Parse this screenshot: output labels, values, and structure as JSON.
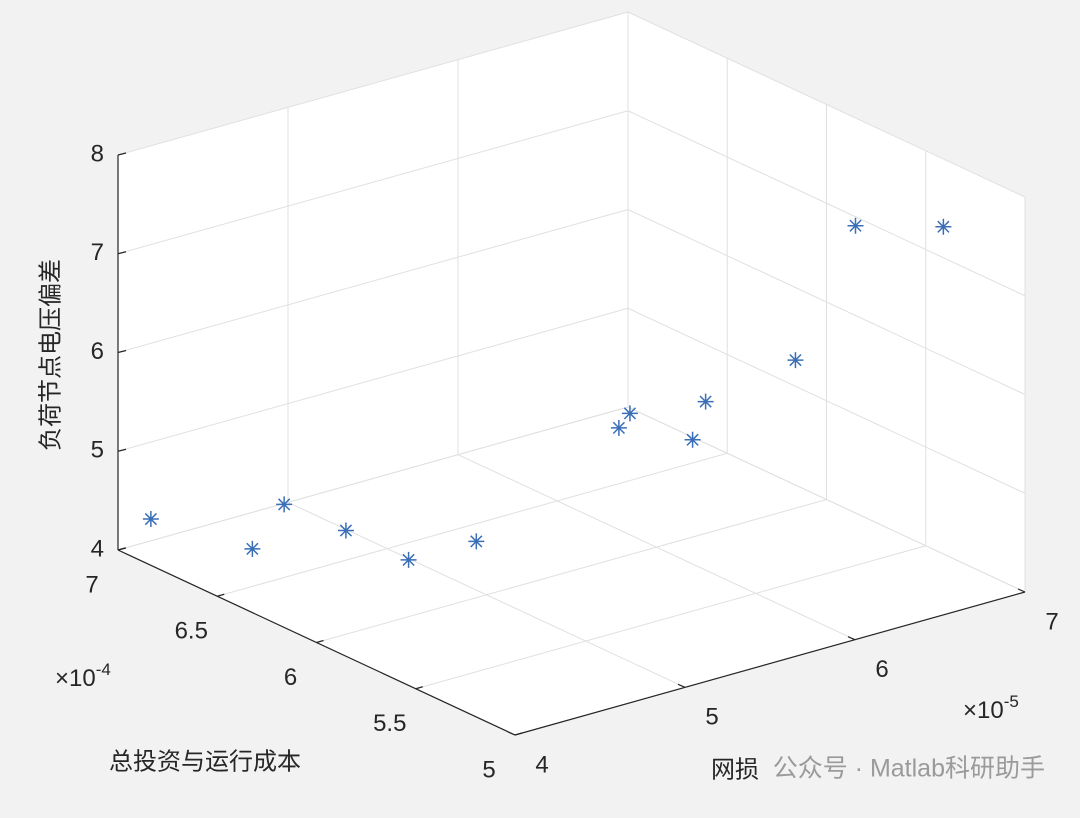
{
  "chart_data": {
    "type": "scatter3d",
    "xlabel": "总投资与运行成本",
    "ylabel": "网损",
    "zlabel": "负荷节点电压偏差",
    "x_exponent": {
      "base": "×10",
      "power": "-4"
    },
    "y_exponent": {
      "base": "×10",
      "power": "-5"
    },
    "xlim": [
      5,
      7
    ],
    "ylim": [
      4,
      7
    ],
    "zlim": [
      4,
      8
    ],
    "xticks": [
      5,
      5.5,
      6,
      6.5,
      7
    ],
    "yticks": [
      4,
      5,
      6,
      7
    ],
    "zticks": [
      4,
      5,
      6,
      7,
      8
    ],
    "grid": true,
    "color": "#3a6fb7",
    "series": [
      {
        "x": [
          6.92,
          6.58,
          6.42,
          6.28,
          6.05,
          5.88,
          5.59,
          5.62,
          5.39,
          5.41,
          5.3,
          5.34,
          5.24
        ],
        "y": [
          4.1,
          4.3,
          4.3,
          4.5,
          4.6,
          4.8,
          5.3,
          5.4,
          5.5,
          5.6,
          6.0,
          6.4,
          6.8
        ],
        "z": [
          4.34,
          4.26,
          4.86,
          4.63,
          4.5,
          4.75,
          5.93,
          6.0,
          5.9,
          6.22,
          6.55,
          7.68,
          7.57
        ]
      }
    ]
  },
  "watermark": "公众号 · Matlab科研助手"
}
